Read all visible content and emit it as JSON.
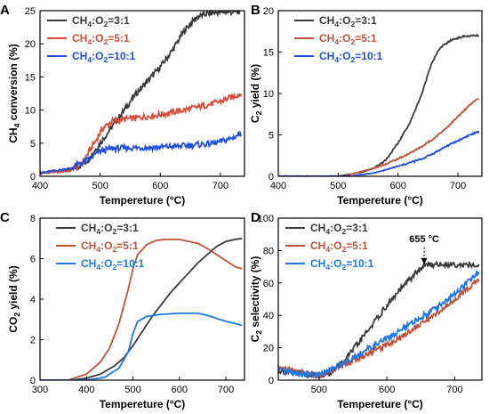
{
  "chart_data": [
    {
      "panel": "A",
      "type": "line",
      "xlabel": "Tempereture (°C)",
      "ylabel": "CH4 conversion (%)",
      "xlim": [
        400,
        740
      ],
      "ylim": [
        0,
        25
      ],
      "xticks": [
        400,
        500,
        600,
        700
      ],
      "yticks": [
        0,
        5,
        10,
        15,
        20,
        25
      ],
      "legend_position": "top-left",
      "noise_level": 0.45,
      "series": [
        {
          "name": "CH4:O2=3:1",
          "color": "#3a3a3a",
          "x": [
            400,
            440,
            460,
            480,
            500,
            520,
            540,
            560,
            580,
            600,
            620,
            640,
            660,
            680,
            700,
            720,
            735
          ],
          "y": [
            0.5,
            0.8,
            1.2,
            2.5,
            5,
            7.5,
            10,
            12.5,
            14.5,
            16.5,
            19,
            22,
            24,
            24.6,
            24.8,
            24.8,
            24.9
          ]
        },
        {
          "name": "CH4:O2=5:1",
          "color": "#d94b3a",
          "x": [
            400,
            450,
            470,
            490,
            505,
            520,
            540,
            560,
            600,
            640,
            680,
            700,
            720,
            735
          ],
          "y": [
            0.5,
            0.8,
            2,
            5,
            7.3,
            8.3,
            8.6,
            8.8,
            9.3,
            10,
            10.8,
            11.3,
            12,
            12.5
          ]
        },
        {
          "name": "CH4:O2=10:1",
          "color": "#1f4fe0",
          "x": [
            400,
            450,
            480,
            500,
            520,
            560,
            600,
            640,
            680,
            700,
            720,
            735
          ],
          "y": [
            0.5,
            1.2,
            2.5,
            3.8,
            4.2,
            4.3,
            4.4,
            4.6,
            4.9,
            5.2,
            5.8,
            6.5
          ]
        }
      ]
    },
    {
      "panel": "B",
      "type": "line",
      "xlabel": "Tempereture (°C)",
      "ylabel": "C2 yield (%)",
      "xlim": [
        400,
        740
      ],
      "ylim": [
        0,
        20
      ],
      "xticks": [
        400,
        500,
        600,
        700
      ],
      "yticks": [
        0,
        5,
        10,
        15,
        20
      ],
      "legend_position": "top-right",
      "noise_level": 0.1,
      "series": [
        {
          "name": "CH4:O2=3:1",
          "color": "#3a3a3a",
          "x": [
            400,
            500,
            540,
            560,
            580,
            600,
            620,
            640,
            655,
            670,
            690,
            710,
            735
          ],
          "y": [
            0,
            0,
            0.5,
            1,
            2,
            4,
            6.5,
            10,
            13.5,
            15.5,
            16.5,
            16.9,
            17
          ]
        },
        {
          "name": "CH4:O2=5:1",
          "color": "#c0513a",
          "x": [
            400,
            510,
            540,
            560,
            580,
            600,
            620,
            640,
            660,
            680,
            700,
            720,
            735
          ],
          "y": [
            0,
            0,
            0.6,
            1,
            1.5,
            2.1,
            2.8,
            3.6,
            4.6,
            5.8,
            7.2,
            8.6,
            9.5
          ]
        },
        {
          "name": "CH4:O2=10:1",
          "color": "#1f4fe0",
          "x": [
            400,
            520,
            560,
            600,
            640,
            660,
            680,
            700,
            720,
            735
          ],
          "y": [
            0,
            0,
            0.4,
            1.2,
            2.1,
            2.8,
            3.6,
            4.3,
            5,
            5.4
          ]
        }
      ]
    },
    {
      "panel": "C",
      "type": "line",
      "xlabel": "Tempereture (°C)",
      "ylabel": "CO2 yield (%)",
      "xlim": [
        300,
        740
      ],
      "ylim": [
        0,
        8
      ],
      "xticks": [
        300,
        400,
        500,
        600,
        700
      ],
      "yticks": [
        0,
        2,
        4,
        6,
        8
      ],
      "legend_position": "top-right",
      "noise_level": 0,
      "series": [
        {
          "name": "CH4:O2=3:1",
          "color": "#3a3a3a",
          "x": [
            300,
            370,
            400,
            430,
            460,
            480,
            500,
            520,
            540,
            560,
            580,
            600,
            620,
            640,
            660,
            680,
            700,
            720,
            735
          ],
          "y": [
            0,
            0,
            0.1,
            0.3,
            0.7,
            1.1,
            1.7,
            2.4,
            3.1,
            3.7,
            4.3,
            4.8,
            5.3,
            5.8,
            6.2,
            6.6,
            6.85,
            6.95,
            7
          ]
        },
        {
          "name": "CH4:O2=5:1",
          "color": "#c0513a",
          "x": [
            300,
            360,
            400,
            430,
            450,
            470,
            490,
            500,
            510,
            530,
            550,
            570,
            600,
            640,
            660,
            680,
            700,
            720,
            735
          ],
          "y": [
            0,
            0,
            0.3,
            0.9,
            1.6,
            2.8,
            4.5,
            5.5,
            6.2,
            6.7,
            6.9,
            6.95,
            6.95,
            6.75,
            6.5,
            6.2,
            5.9,
            5.6,
            5.5
          ]
        },
        {
          "name": "CH4:O2=10:1",
          "color": "#1f78e8",
          "x": [
            300,
            400,
            440,
            470,
            490,
            500,
            510,
            530,
            560,
            600,
            640,
            660,
            680,
            700,
            720,
            735
          ],
          "y": [
            0,
            0,
            0.15,
            0.6,
            1.4,
            2.3,
            2.9,
            3.15,
            3.25,
            3.3,
            3.3,
            3.2,
            3.05,
            2.9,
            2.8,
            2.7
          ]
        }
      ]
    },
    {
      "panel": "D",
      "type": "line",
      "xlabel": "Tempereture (°C)",
      "ylabel": "C2 selectivity (%)",
      "xlim": [
        440,
        740
      ],
      "ylim": [
        0,
        100
      ],
      "xticks": [
        500,
        600,
        700
      ],
      "yticks": [
        0,
        20,
        40,
        60,
        80,
        100
      ],
      "legend_position": "top-left",
      "noise_level": 1.8,
      "annotation": {
        "text": "655 °C",
        "x": 655,
        "y": 71
      },
      "series": [
        {
          "name": "CH4:O2=3:1",
          "color": "#3a3a3a",
          "x": [
            440,
            470,
            500,
            520,
            540,
            560,
            580,
            600,
            620,
            640,
            655,
            680,
            700,
            720,
            735
          ],
          "y": [
            6,
            4,
            3,
            5,
            13,
            24,
            35,
            46,
            56,
            65,
            71,
            71.5,
            71.5,
            71,
            70
          ]
        },
        {
          "name": "CH4:O2=5:1",
          "color": "#c0513a",
          "x": [
            440,
            470,
            500,
            520,
            550,
            580,
            610,
            640,
            670,
            700,
            720,
            735
          ],
          "y": [
            8,
            5,
            3,
            6,
            12,
            18,
            24,
            32,
            40,
            50,
            57,
            62
          ]
        },
        {
          "name": "CH4:O2=10:1",
          "color": "#1f78e8",
          "x": [
            440,
            470,
            500,
            520,
            550,
            580,
            610,
            640,
            670,
            700,
            720,
            735
          ],
          "y": [
            6,
            4,
            3,
            7,
            14,
            21,
            28,
            36,
            44,
            53,
            61,
            66
          ]
        }
      ]
    }
  ]
}
